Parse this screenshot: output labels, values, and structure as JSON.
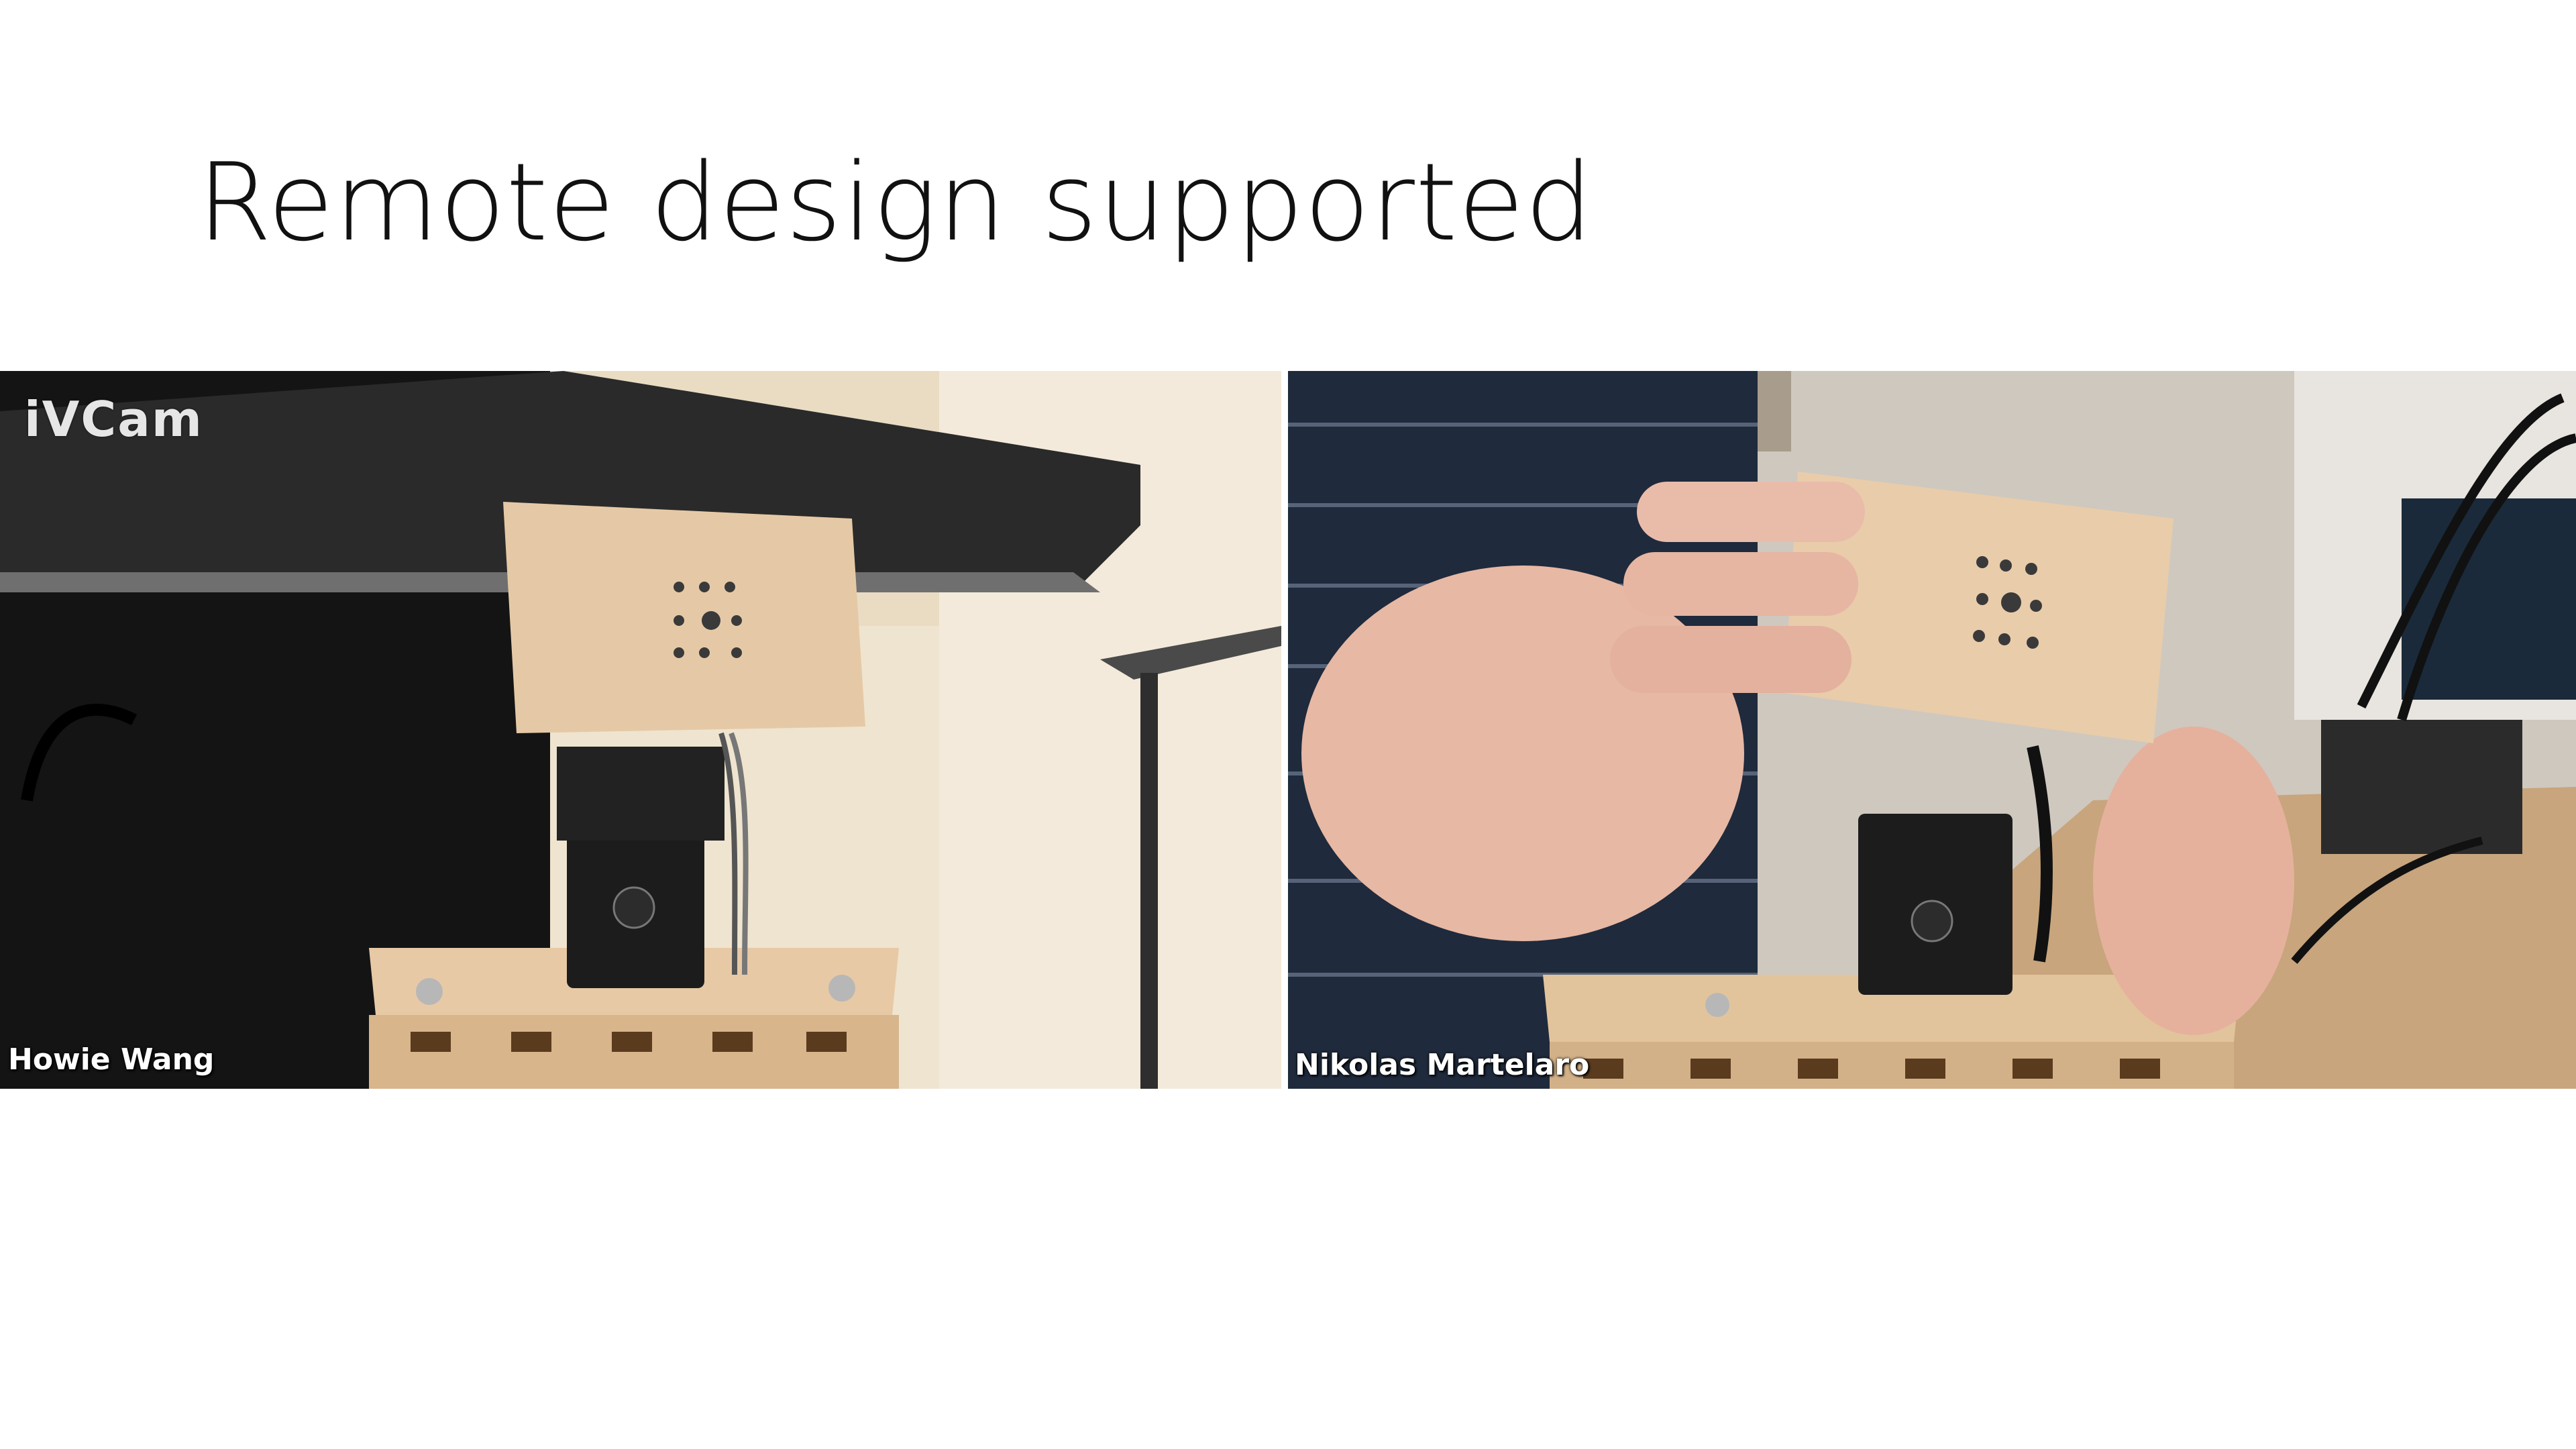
{
  "slide": {
    "title": "Remote design supported"
  },
  "video_call": {
    "tiles": [
      {
        "participant": "Howie Wang",
        "watermark": "iVCam"
      },
      {
        "participant": "Nikolas Martelaro"
      }
    ]
  },
  "colors": {
    "background": "#ffffff",
    "wood": "#e7c9a5",
    "servo": "#1c1c1c"
  }
}
